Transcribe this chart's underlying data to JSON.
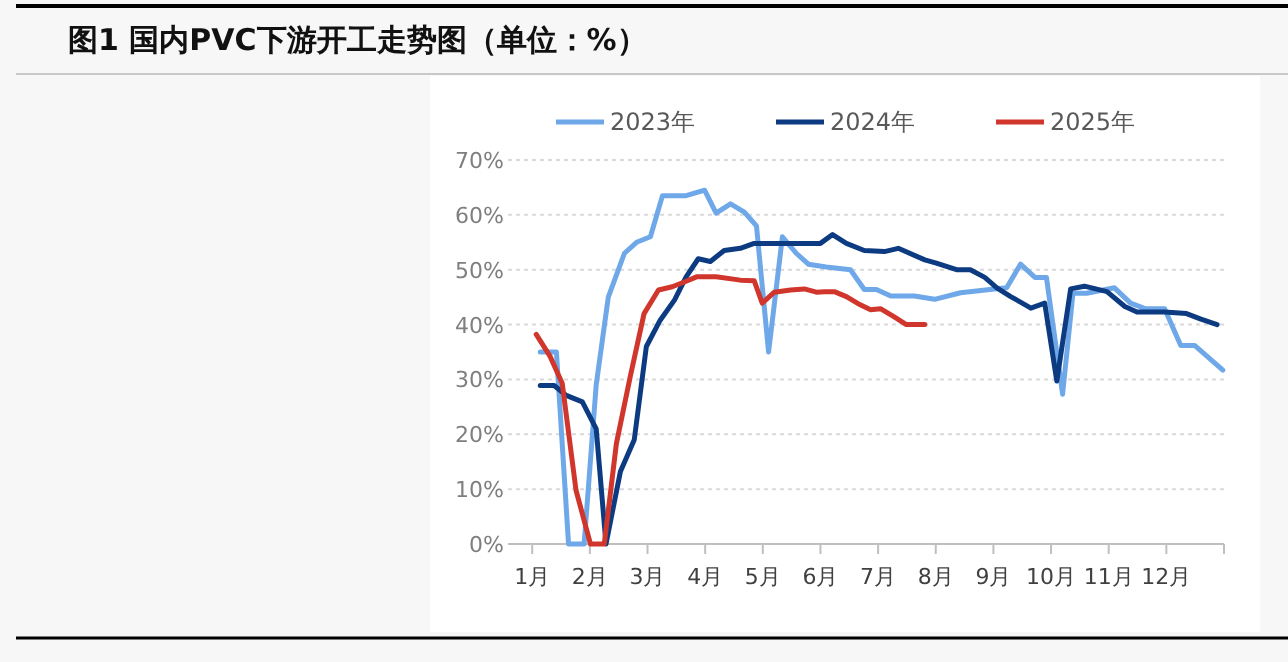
{
  "chart_data": {
    "type": "line",
    "title": "图1  国内PVC下游开工走势图（单位：%）",
    "xlim": [
      0.58,
      13
    ],
    "xticks": [
      {
        "value": 1,
        "label": "1月"
      },
      {
        "value": 2,
        "label": "2月"
      },
      {
        "value": 3,
        "label": "3月"
      },
      {
        "value": 4,
        "label": "4月"
      },
      {
        "value": 5,
        "label": "5月"
      },
      {
        "value": 6,
        "label": "6月"
      },
      {
        "value": 7,
        "label": "7月"
      },
      {
        "value": 8,
        "label": "8月"
      },
      {
        "value": 9,
        "label": "9月"
      },
      {
        "value": 10,
        "label": "10月"
      },
      {
        "value": 11,
        "label": "11月"
      },
      {
        "value": 12,
        "label": "12月"
      },
      {
        "value": 13,
        "label": null
      }
    ],
    "ylim": [
      0,
      70
    ],
    "yticks": [
      {
        "value": 0,
        "label": "0%"
      },
      {
        "value": 10,
        "label": "10%"
      },
      {
        "value": 20,
        "label": "20%"
      },
      {
        "value": 30,
        "label": "30%"
      },
      {
        "value": 40,
        "label": "40%"
      },
      {
        "value": 50,
        "label": "50%"
      },
      {
        "value": 60,
        "label": "60%"
      },
      {
        "value": 70,
        "label": "70%"
      }
    ],
    "grid": "y",
    "legend": "top",
    "series": [
      {
        "name": "2023年",
        "color": "#6fa8e8",
        "x": [
          1.14,
          1.42,
          1.63,
          1.9,
          2.11,
          2.32,
          2.6,
          2.81,
          3.05,
          3.26,
          3.67,
          3.99,
          4.19,
          4.44,
          4.68,
          4.89,
          5.1,
          5.34,
          5.58,
          5.79,
          6.1,
          6.52,
          6.76,
          6.97,
          7.22,
          7.63,
          7.98,
          8.43,
          9.02,
          9.23,
          9.47,
          9.72,
          9.92,
          10.2,
          10.38,
          10.62,
          11.1,
          11.38,
          11.63,
          11.97,
          12.25,
          12.49,
          12.98
        ],
        "values": [
          35,
          35,
          0,
          0,
          29,
          45,
          53,
          55,
          56,
          63.5,
          63.5,
          64.5,
          60.3,
          62,
          60.5,
          58,
          35,
          56,
          53,
          51,
          50.5,
          50,
          46.4,
          46.4,
          45.2,
          45.2,
          44.6,
          45.8,
          46.5,
          46.7,
          51,
          48.6,
          48.6,
          27.3,
          45.7,
          45.7,
          46.7,
          43.9,
          42.9,
          42.9,
          36.2,
          36.2,
          31.7
        ]
      },
      {
        "name": "2024年",
        "color": "#0d3b82",
        "x": [
          1.14,
          1.38,
          1.59,
          1.87,
          2.11,
          2.28,
          2.53,
          2.77,
          2.98,
          3.22,
          3.47,
          3.67,
          3.88,
          4.09,
          4.33,
          4.61,
          4.85,
          5.65,
          6.0,
          6.21,
          6.45,
          6.76,
          7.11,
          7.35,
          7.81,
          8.01,
          8.36,
          8.6,
          8.85,
          9.06,
          9.3,
          9.47,
          9.65,
          9.89,
          10.1,
          10.34,
          10.58,
          10.97,
          11.28,
          11.49,
          11.97,
          12.35,
          12.6,
          12.88
        ],
        "values": [
          28.9,
          28.9,
          27.1,
          25.9,
          21,
          0,
          13.2,
          19,
          36,
          40.8,
          44.5,
          48.7,
          52,
          51.5,
          53.5,
          53.9,
          54.8,
          54.8,
          54.8,
          56.4,
          54.8,
          53.5,
          53.3,
          53.9,
          51.8,
          51.2,
          50,
          50,
          48.6,
          46.7,
          45.1,
          44.1,
          43,
          43.9,
          29.7,
          46.5,
          47,
          46,
          43.3,
          42.3,
          42.3,
          42,
          41,
          40
        ]
      },
      {
        "name": "2025年",
        "color": "#d0362c",
        "x": [
          1.07,
          1.31,
          1.52,
          1.76,
          2.01,
          2.25,
          2.46,
          2.7,
          2.94,
          3.19,
          3.43,
          3.67,
          3.85,
          4.19,
          4.61,
          4.85,
          4.99,
          5.2,
          5.48,
          5.72,
          5.93,
          6.07,
          6.24,
          6.45,
          6.69,
          6.87,
          7.04,
          7.28,
          7.49,
          7.81
        ],
        "values": [
          38.2,
          34.2,
          29.3,
          9.8,
          0,
          0,
          18.3,
          30.5,
          42,
          46.3,
          46.9,
          47.9,
          48.7,
          48.7,
          48.1,
          48,
          43.9,
          45.9,
          46.3,
          46.5,
          45.9,
          46,
          46,
          45.1,
          43.6,
          42.7,
          42.9,
          41.4,
          40,
          40
        ]
      }
    ]
  }
}
